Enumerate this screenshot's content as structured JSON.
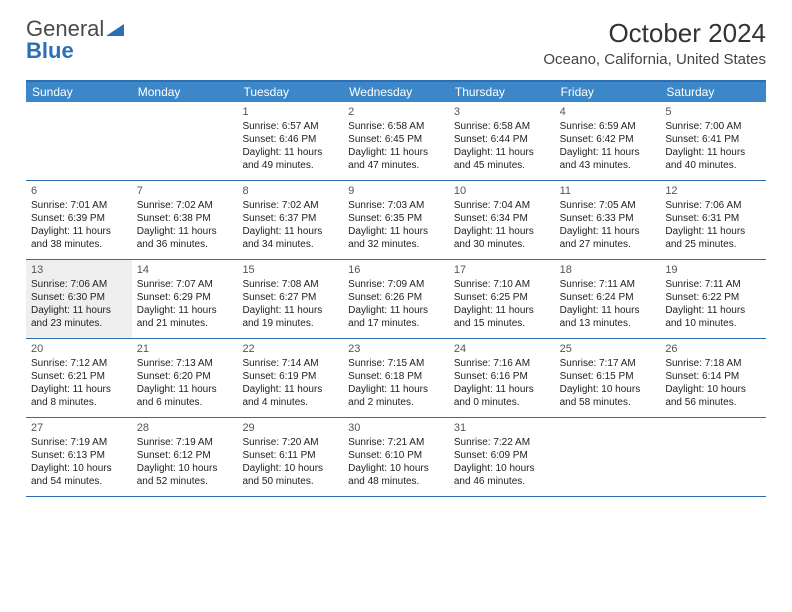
{
  "brand": {
    "name_a": "General",
    "name_b": "Blue"
  },
  "title": {
    "month": "October 2024",
    "location": "Oceano, California, United States"
  },
  "colors": {
    "header_bg": "#3b87c8",
    "header_text": "#ffffff",
    "rule": "#2e6fb3",
    "highlight_bg": "#efefef",
    "page_bg": "#ffffff",
    "text": "#222222",
    "brand_gray": "#4a4a4a",
    "brand_blue": "#2e6fb3"
  },
  "typography": {
    "month_title_pt": 26,
    "location_pt": 15,
    "day_header_pt": 12,
    "day_num_pt": 11,
    "cell_text_pt": 10
  },
  "day_headers": [
    "Sunday",
    "Monday",
    "Tuesday",
    "Wednesday",
    "Thursday",
    "Friday",
    "Saturday"
  ],
  "weeks": [
    [
      {
        "empty": true
      },
      {
        "empty": true
      },
      {
        "num": "1",
        "sunrise": "Sunrise: 6:57 AM",
        "sunset": "Sunset: 6:46 PM",
        "day1": "Daylight: 11 hours",
        "day2": "and 49 minutes."
      },
      {
        "num": "2",
        "sunrise": "Sunrise: 6:58 AM",
        "sunset": "Sunset: 6:45 PM",
        "day1": "Daylight: 11 hours",
        "day2": "and 47 minutes."
      },
      {
        "num": "3",
        "sunrise": "Sunrise: 6:58 AM",
        "sunset": "Sunset: 6:44 PM",
        "day1": "Daylight: 11 hours",
        "day2": "and 45 minutes."
      },
      {
        "num": "4",
        "sunrise": "Sunrise: 6:59 AM",
        "sunset": "Sunset: 6:42 PM",
        "day1": "Daylight: 11 hours",
        "day2": "and 43 minutes."
      },
      {
        "num": "5",
        "sunrise": "Sunrise: 7:00 AM",
        "sunset": "Sunset: 6:41 PM",
        "day1": "Daylight: 11 hours",
        "day2": "and 40 minutes."
      }
    ],
    [
      {
        "num": "6",
        "sunrise": "Sunrise: 7:01 AM",
        "sunset": "Sunset: 6:39 PM",
        "day1": "Daylight: 11 hours",
        "day2": "and 38 minutes."
      },
      {
        "num": "7",
        "sunrise": "Sunrise: 7:02 AM",
        "sunset": "Sunset: 6:38 PM",
        "day1": "Daylight: 11 hours",
        "day2": "and 36 minutes."
      },
      {
        "num": "8",
        "sunrise": "Sunrise: 7:02 AM",
        "sunset": "Sunset: 6:37 PM",
        "day1": "Daylight: 11 hours",
        "day2": "and 34 minutes."
      },
      {
        "num": "9",
        "sunrise": "Sunrise: 7:03 AM",
        "sunset": "Sunset: 6:35 PM",
        "day1": "Daylight: 11 hours",
        "day2": "and 32 minutes."
      },
      {
        "num": "10",
        "sunrise": "Sunrise: 7:04 AM",
        "sunset": "Sunset: 6:34 PM",
        "day1": "Daylight: 11 hours",
        "day2": "and 30 minutes."
      },
      {
        "num": "11",
        "sunrise": "Sunrise: 7:05 AM",
        "sunset": "Sunset: 6:33 PM",
        "day1": "Daylight: 11 hours",
        "day2": "and 27 minutes."
      },
      {
        "num": "12",
        "sunrise": "Sunrise: 7:06 AM",
        "sunset": "Sunset: 6:31 PM",
        "day1": "Daylight: 11 hours",
        "day2": "and 25 minutes."
      }
    ],
    [
      {
        "num": "13",
        "highlight": true,
        "sunrise": "Sunrise: 7:06 AM",
        "sunset": "Sunset: 6:30 PM",
        "day1": "Daylight: 11 hours",
        "day2": "and 23 minutes."
      },
      {
        "num": "14",
        "sunrise": "Sunrise: 7:07 AM",
        "sunset": "Sunset: 6:29 PM",
        "day1": "Daylight: 11 hours",
        "day2": "and 21 minutes."
      },
      {
        "num": "15",
        "sunrise": "Sunrise: 7:08 AM",
        "sunset": "Sunset: 6:27 PM",
        "day1": "Daylight: 11 hours",
        "day2": "and 19 minutes."
      },
      {
        "num": "16",
        "sunrise": "Sunrise: 7:09 AM",
        "sunset": "Sunset: 6:26 PM",
        "day1": "Daylight: 11 hours",
        "day2": "and 17 minutes."
      },
      {
        "num": "17",
        "sunrise": "Sunrise: 7:10 AM",
        "sunset": "Sunset: 6:25 PM",
        "day1": "Daylight: 11 hours",
        "day2": "and 15 minutes."
      },
      {
        "num": "18",
        "sunrise": "Sunrise: 7:11 AM",
        "sunset": "Sunset: 6:24 PM",
        "day1": "Daylight: 11 hours",
        "day2": "and 13 minutes."
      },
      {
        "num": "19",
        "sunrise": "Sunrise: 7:11 AM",
        "sunset": "Sunset: 6:22 PM",
        "day1": "Daylight: 11 hours",
        "day2": "and 10 minutes."
      }
    ],
    [
      {
        "num": "20",
        "sunrise": "Sunrise: 7:12 AM",
        "sunset": "Sunset: 6:21 PM",
        "day1": "Daylight: 11 hours",
        "day2": "and 8 minutes."
      },
      {
        "num": "21",
        "sunrise": "Sunrise: 7:13 AM",
        "sunset": "Sunset: 6:20 PM",
        "day1": "Daylight: 11 hours",
        "day2": "and 6 minutes."
      },
      {
        "num": "22",
        "sunrise": "Sunrise: 7:14 AM",
        "sunset": "Sunset: 6:19 PM",
        "day1": "Daylight: 11 hours",
        "day2": "and 4 minutes."
      },
      {
        "num": "23",
        "sunrise": "Sunrise: 7:15 AM",
        "sunset": "Sunset: 6:18 PM",
        "day1": "Daylight: 11 hours",
        "day2": "and 2 minutes."
      },
      {
        "num": "24",
        "sunrise": "Sunrise: 7:16 AM",
        "sunset": "Sunset: 6:16 PM",
        "day1": "Daylight: 11 hours",
        "day2": "and 0 minutes."
      },
      {
        "num": "25",
        "sunrise": "Sunrise: 7:17 AM",
        "sunset": "Sunset: 6:15 PM",
        "day1": "Daylight: 10 hours",
        "day2": "and 58 minutes."
      },
      {
        "num": "26",
        "sunrise": "Sunrise: 7:18 AM",
        "sunset": "Sunset: 6:14 PM",
        "day1": "Daylight: 10 hours",
        "day2": "and 56 minutes."
      }
    ],
    [
      {
        "num": "27",
        "sunrise": "Sunrise: 7:19 AM",
        "sunset": "Sunset: 6:13 PM",
        "day1": "Daylight: 10 hours",
        "day2": "and 54 minutes."
      },
      {
        "num": "28",
        "sunrise": "Sunrise: 7:19 AM",
        "sunset": "Sunset: 6:12 PM",
        "day1": "Daylight: 10 hours",
        "day2": "and 52 minutes."
      },
      {
        "num": "29",
        "sunrise": "Sunrise: 7:20 AM",
        "sunset": "Sunset: 6:11 PM",
        "day1": "Daylight: 10 hours",
        "day2": "and 50 minutes."
      },
      {
        "num": "30",
        "sunrise": "Sunrise: 7:21 AM",
        "sunset": "Sunset: 6:10 PM",
        "day1": "Daylight: 10 hours",
        "day2": "and 48 minutes."
      },
      {
        "num": "31",
        "sunrise": "Sunrise: 7:22 AM",
        "sunset": "Sunset: 6:09 PM",
        "day1": "Daylight: 10 hours",
        "day2": "and 46 minutes."
      },
      {
        "empty": true
      },
      {
        "empty": true
      }
    ]
  ]
}
